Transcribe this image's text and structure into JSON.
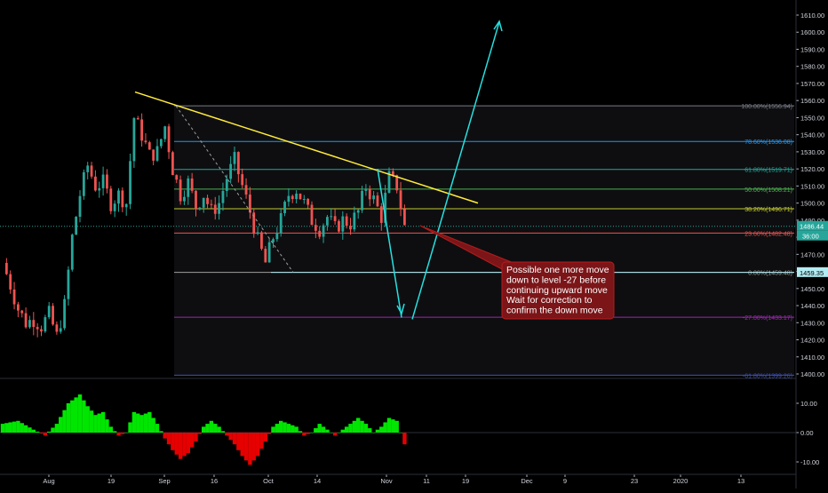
{
  "price_axis": {
    "ticks": [
      1610,
      1600,
      1590,
      1580,
      1570,
      1560,
      1550,
      1540,
      1530,
      1520,
      1510,
      1500,
      1490,
      1480,
      1470,
      1460,
      1450,
      1440,
      1430,
      1420,
      1410,
      1400
    ],
    "tick_labels": [
      "1610.00",
      "1600.00",
      "1590.00",
      "1580.00",
      "1570.00",
      "1560.00",
      "1550.00",
      "1540.00",
      "1530.00",
      "1520.00",
      "1510.00",
      "1500.00",
      "1490.00",
      "1480.00",
      "1470.00",
      "1460.00",
      "1450.00",
      "1440.00",
      "1430.00",
      "1420.00",
      "1410.00",
      "1400.00"
    ],
    "last_price_label": "1486.44",
    "countdown_label": "36:00",
    "level_badge": "1459.35",
    "last_price_color": "#26a69a",
    "level_badge_color": "#b2ebf2"
  },
  "osc_axis": {
    "ticks": [
      10,
      0,
      -10
    ],
    "tick_labels": [
      "10.00",
      "0.00",
      "-10.00"
    ]
  },
  "time_axis": {
    "labels": [
      "Aug",
      "19",
      "Sep",
      "16",
      "Oct",
      "14",
      "Nov",
      "11",
      "19",
      "Dec",
      "9",
      "23",
      "2020",
      "13"
    ]
  },
  "fib_levels": [
    {
      "label": "100.00%(1556.94)",
      "price": 1556.94,
      "color": "#787b86"
    },
    {
      "label": "78.60%(1536.08)",
      "price": 1536.08,
      "color": "#2196f3"
    },
    {
      "label": "61.80%(1519.71)",
      "price": 1519.71,
      "color": "#26a69a"
    },
    {
      "label": "50.00%(1508.21)",
      "price": 1508.21,
      "color": "#4caf50"
    },
    {
      "label": "38.20%(1496.71)",
      "price": 1496.71,
      "color": "#c0ca33"
    },
    {
      "label": "23.60%(1482.48)",
      "price": 1482.48,
      "color": "#ef5350"
    },
    {
      "label": "0.00%(1459.48)",
      "price": 1459.48,
      "color": "#9e9e9e"
    },
    {
      "label": "-27.00%(1433.17)",
      "price": 1433.17,
      "color": "#9c27b0"
    },
    {
      "label": "-61.80%(1399.26)",
      "price": 1399.26,
      "color": "#3f51b5"
    }
  ],
  "annotation": {
    "lines": [
      "Possible one more move",
      "down to level -27 before",
      "continuing upward move",
      "Wait for correction to",
      "confirm the down move"
    ],
    "bg_color": "#7b1518",
    "border_color": "#b71c1c"
  },
  "chart_data": {
    "type": "candlestick",
    "ylim": [
      1397,
      1614
    ],
    "osc_ylim": [
      -12,
      17
    ],
    "price_series": [
      {
        "bar": 0,
        "close": 1465
      },
      {
        "bar": 2,
        "close": 1452
      },
      {
        "bar": 4,
        "close": 1438
      },
      {
        "bar": 6,
        "close": 1430
      },
      {
        "bar": 8,
        "close": 1432
      },
      {
        "bar": 10,
        "close": 1428
      },
      {
        "bar": 12,
        "close": 1435
      },
      {
        "bar": 14,
        "close": 1422
      },
      {
        "bar": 16,
        "close": 1440
      },
      {
        "bar": 18,
        "close": 1480
      },
      {
        "bar": 20,
        "close": 1505
      },
      {
        "bar": 22,
        "close": 1522
      },
      {
        "bar": 24,
        "close": 1510
      },
      {
        "bar": 26,
        "close": 1512
      },
      {
        "bar": 28,
        "close": 1500
      },
      {
        "bar": 30,
        "close": 1505
      },
      {
        "bar": 32,
        "close": 1500
      },
      {
        "bar": 34,
        "close": 1550
      },
      {
        "bar": 36,
        "close": 1540
      },
      {
        "bar": 38,
        "close": 1528
      },
      {
        "bar": 40,
        "close": 1530
      },
      {
        "bar": 42,
        "close": 1545
      },
      {
        "bar": 44,
        "close": 1520
      },
      {
        "bar": 46,
        "close": 1505
      },
      {
        "bar": 48,
        "close": 1512
      },
      {
        "bar": 50,
        "close": 1498
      },
      {
        "bar": 52,
        "close": 1505
      },
      {
        "bar": 54,
        "close": 1495
      },
      {
        "bar": 56,
        "close": 1500
      },
      {
        "bar": 58,
        "close": 1515
      },
      {
        "bar": 60,
        "close": 1525
      },
      {
        "bar": 62,
        "close": 1510
      },
      {
        "bar": 64,
        "close": 1495
      },
      {
        "bar": 66,
        "close": 1478
      },
      {
        "bar": 68,
        "close": 1465
      },
      {
        "bar": 70,
        "close": 1480
      },
      {
        "bar": 72,
        "close": 1490
      },
      {
        "bar": 74,
        "close": 1505
      },
      {
        "bar": 76,
        "close": 1508
      },
      {
        "bar": 78,
        "close": 1500
      },
      {
        "bar": 80,
        "close": 1490
      },
      {
        "bar": 82,
        "close": 1485
      },
      {
        "bar": 84,
        "close": 1492
      },
      {
        "bar": 86,
        "close": 1485
      },
      {
        "bar": 88,
        "close": 1490
      },
      {
        "bar": 90,
        "close": 1488
      },
      {
        "bar": 92,
        "close": 1495
      },
      {
        "bar": 94,
        "close": 1510
      },
      {
        "bar": 96,
        "close": 1502
      },
      {
        "bar": 98,
        "close": 1492
      },
      {
        "bar": 100,
        "close": 1515
      },
      {
        "bar": 102,
        "close": 1510
      },
      {
        "bar": 104,
        "close": 1486
      }
    ],
    "oscillator_series": [
      {
        "bar": 0,
        "value": 3
      },
      {
        "bar": 4,
        "value": 4
      },
      {
        "bar": 8,
        "value": 1
      },
      {
        "bar": 11,
        "value": -1
      },
      {
        "bar": 14,
        "value": 3
      },
      {
        "bar": 17,
        "value": 10
      },
      {
        "bar": 20,
        "value": 13
      },
      {
        "bar": 22,
        "value": 9
      },
      {
        "bar": 24,
        "value": 6
      },
      {
        "bar": 26,
        "value": 7
      },
      {
        "bar": 28,
        "value": 2
      },
      {
        "bar": 30,
        "value": -1
      },
      {
        "bar": 32,
        "value": 0
      },
      {
        "bar": 34,
        "value": 7
      },
      {
        "bar": 36,
        "value": 6
      },
      {
        "bar": 38,
        "value": 7
      },
      {
        "bar": 40,
        "value": 3
      },
      {
        "bar": 42,
        "value": -2
      },
      {
        "bar": 44,
        "value": -6
      },
      {
        "bar": 46,
        "value": -9
      },
      {
        "bar": 48,
        "value": -7
      },
      {
        "bar": 50,
        "value": -3
      },
      {
        "bar": 52,
        "value": 2
      },
      {
        "bar": 54,
        "value": 4
      },
      {
        "bar": 56,
        "value": 2
      },
      {
        "bar": 58,
        "value": -1
      },
      {
        "bar": 60,
        "value": -4
      },
      {
        "bar": 62,
        "value": -8
      },
      {
        "bar": 64,
        "value": -11
      },
      {
        "bar": 66,
        "value": -8
      },
      {
        "bar": 68,
        "value": -3
      },
      {
        "bar": 70,
        "value": 2
      },
      {
        "bar": 72,
        "value": 4
      },
      {
        "bar": 74,
        "value": 3
      },
      {
        "bar": 76,
        "value": 2
      },
      {
        "bar": 78,
        "value": -1
      },
      {
        "bar": 80,
        "value": 0
      },
      {
        "bar": 82,
        "value": 3
      },
      {
        "bar": 84,
        "value": 1
      },
      {
        "bar": 86,
        "value": -1
      },
      {
        "bar": 88,
        "value": 1
      },
      {
        "bar": 90,
        "value": 3
      },
      {
        "bar": 92,
        "value": 5
      },
      {
        "bar": 94,
        "value": 3
      },
      {
        "bar": 96,
        "value": 0
      },
      {
        "bar": 98,
        "value": 2
      },
      {
        "bar": 100,
        "value": 5
      },
      {
        "bar": 102,
        "value": 4
      },
      {
        "bar": 104,
        "value": -4
      }
    ]
  }
}
